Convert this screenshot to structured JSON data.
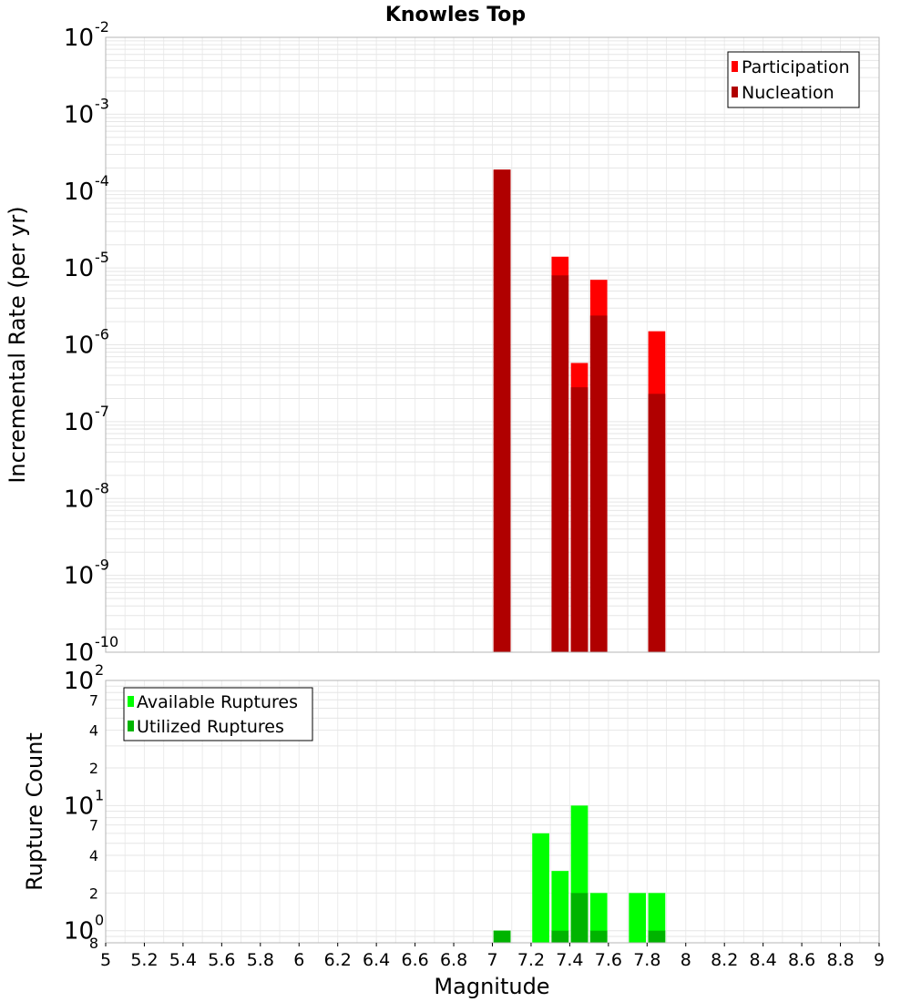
{
  "chart_data": [
    {
      "type": "bar",
      "title": "Knowles Top",
      "xlabel": "",
      "ylabel": "Incremental Rate (per yr)",
      "yscale": "log",
      "xlim": [
        5,
        9
      ],
      "ylim": [
        1e-10,
        0.01
      ],
      "grid": true,
      "legend": "top-right",
      "y_ticks": [
        {
          "base": "10",
          "exp": "-10"
        },
        {
          "base": "10",
          "exp": "-9"
        },
        {
          "base": "10",
          "exp": "-8"
        },
        {
          "base": "10",
          "exp": "-7"
        },
        {
          "base": "10",
          "exp": "-6"
        },
        {
          "base": "10",
          "exp": "-5"
        },
        {
          "base": "10",
          "exp": "-4"
        },
        {
          "base": "10",
          "exp": "-3"
        },
        {
          "base": "10",
          "exp": "-2"
        }
      ],
      "series": [
        {
          "name": "Participation",
          "color": "#ff0000",
          "x": [
            7.05,
            7.35,
            7.45,
            7.55,
            7.85
          ],
          "values": [
            0.00019,
            1.4e-05,
            5.8e-07,
            7e-06,
            1.5e-06
          ]
        },
        {
          "name": "Nucleation",
          "color": "#b00000",
          "x": [
            7.05,
            7.35,
            7.45,
            7.55,
            7.85
          ],
          "values": [
            0.00019,
            8e-06,
            2.8e-07,
            2.4e-06,
            2.3e-07
          ]
        }
      ]
    },
    {
      "type": "bar",
      "title": "",
      "xlabel": "Magnitude",
      "ylabel": "Rupture Count",
      "yscale": "log",
      "xlim": [
        5,
        9
      ],
      "ylim": [
        0.8,
        100
      ],
      "grid": true,
      "legend": "top-left",
      "x_ticks": [
        "5",
        "5.2",
        "5.4",
        "5.6",
        "5.8",
        "6",
        "6.2",
        "6.4",
        "6.6",
        "6.8",
        "7",
        "7.2",
        "7.4",
        "7.6",
        "7.8",
        "8",
        "8.2",
        "8.4",
        "8.6",
        "8.8",
        "9"
      ],
      "y_major_ticks": [
        {
          "value": 1,
          "base": "10",
          "exp": "0"
        },
        {
          "value": 10,
          "base": "10",
          "exp": "1"
        },
        {
          "value": 100,
          "base": "10",
          "exp": "2"
        }
      ],
      "y_minor_ticks": [
        {
          "value": 0.8,
          "label": "8"
        },
        {
          "value": 2,
          "label": "2"
        },
        {
          "value": 4,
          "label": "4"
        },
        {
          "value": 7,
          "label": "7"
        },
        {
          "value": 20,
          "label": "2"
        },
        {
          "value": 40,
          "label": "4"
        },
        {
          "value": 70,
          "label": "7"
        }
      ],
      "series": [
        {
          "name": "Available Ruptures",
          "color": "#00ff00",
          "x": [
            7.05,
            7.25,
            7.35,
            7.45,
            7.55,
            7.75,
            7.85
          ],
          "values": [
            1,
            6,
            3,
            10,
            2,
            2,
            2
          ]
        },
        {
          "name": "Utilized Ruptures",
          "color": "#00b400",
          "x": [
            7.05,
            7.35,
            7.45,
            7.55,
            7.85
          ],
          "values": [
            1,
            1,
            2,
            1,
            1
          ]
        }
      ]
    }
  ]
}
